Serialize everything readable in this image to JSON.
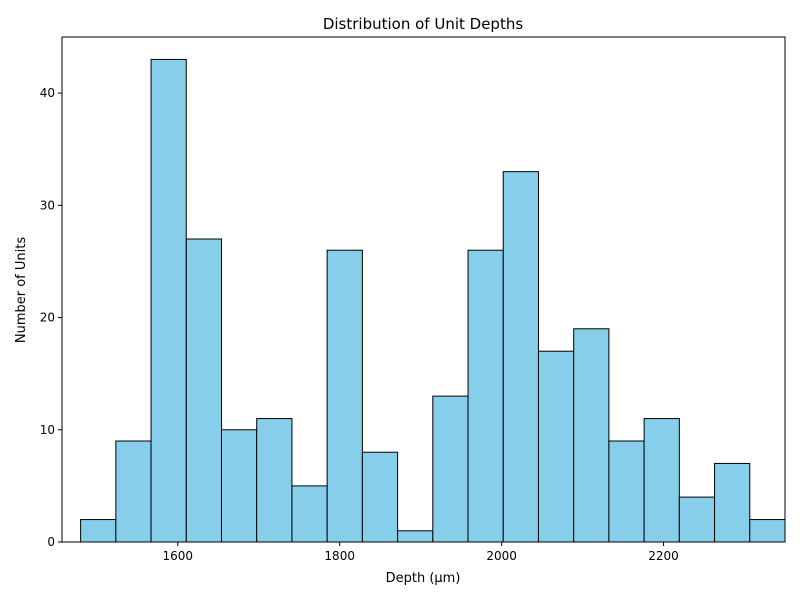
{
  "chart_data": {
    "type": "bar",
    "title": "Distribution of Unit Depths",
    "xlabel": "Depth (µm)",
    "ylabel": "Number of Units",
    "bar_color": "#87ceeb",
    "edge_color": "#000000",
    "xlim": [
      1457,
      2350
    ],
    "ylim": [
      0,
      45
    ],
    "bin_edges": [
      1480,
      1523.5,
      1567,
      1610.5,
      1654,
      1697.5,
      1741,
      1784.5,
      1828,
      1871.5,
      1915,
      1958.5,
      2002,
      2045.5,
      2089,
      2132.5,
      2176,
      2219.5,
      2263,
      2306.5,
      2350
    ],
    "values": [
      2,
      9,
      43,
      27,
      10,
      11,
      5,
      26,
      8,
      1,
      13,
      26,
      33,
      17,
      19,
      9,
      11,
      4,
      7,
      2
    ],
    "xticks": [
      1600,
      1800,
      2000,
      2200
    ],
    "yticks": [
      0,
      10,
      20,
      30,
      40
    ],
    "grid": false
  }
}
